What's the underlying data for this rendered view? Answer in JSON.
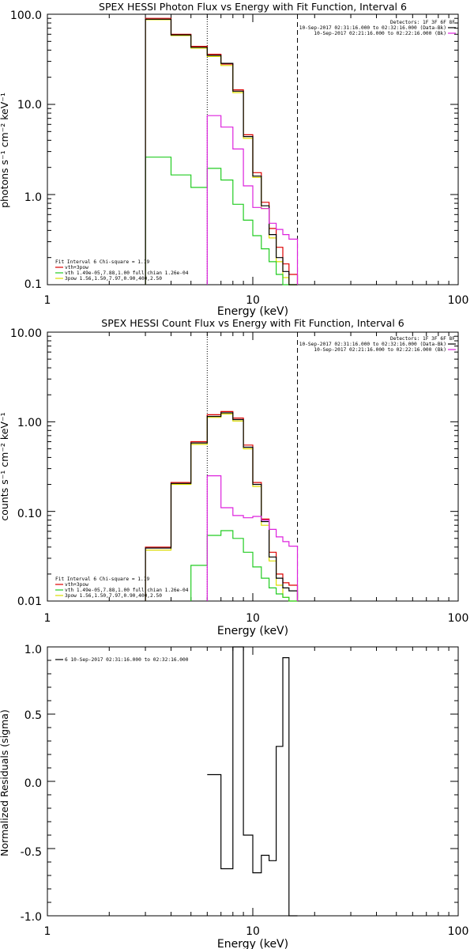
{
  "colors": {
    "total": "#000000",
    "vth_3pow": "#dd0000",
    "vth": "#22cc22",
    "3pow": "#dddd00",
    "bk": "#dd22dd"
  },
  "chart_data": [
    {
      "type": "line",
      "title": "SPEX HESSI Photon Flux vs Energy with Fit Function, Interval 6",
      "xlabel": "Energy (keV)",
      "ylabel": "photons s⁻¹ cm⁻² keV⁻¹",
      "xscale": "log",
      "yscale": "log",
      "xlim": [
        1,
        100
      ],
      "ylim": [
        0.1,
        100
      ],
      "xticks": [
        "1",
        "10",
        "100"
      ],
      "yticks": [
        "0.1",
        "1.0",
        "10.0",
        "100.0"
      ],
      "vlines": [
        {
          "x": 6.0,
          "style": "dotted"
        },
        {
          "x": 16.5,
          "style": "dashed"
        }
      ],
      "legend_top": [
        "Detectors: 1F 3F 6F 8F",
        "10-Sep-2017 02:31:16.000 to 02:32:16.000 (Data-Bk)",
        "10-Sep-2017 02:21:16.000 to 02:22:16.000 (Bk)"
      ],
      "legend_bottom": [
        "Fit Interval 6   Chi-square = 1.19",
        "vth+3pow",
        "vth 1.49e-05,7.88,1.00  full chian 1.26e-04",
        "3pow 1.56,1.50,7.97,0.90,400,2.50"
      ],
      "edges": [
        3,
        4,
        5,
        6,
        7,
        8,
        9,
        10,
        11,
        12,
        13,
        14,
        15,
        16.5
      ],
      "series": [
        {
          "name": "vth+3pow",
          "key": "vth_3pow",
          "values": [
            90,
            60,
            44,
            36,
            28,
            14.5,
            4.6,
            1.75,
            0.82,
            0.42,
            0.26,
            0.17,
            0.13
          ]
        },
        {
          "name": "3pow",
          "key": "3pow",
          "values": [
            87,
            58,
            42,
            34,
            27,
            13.5,
            4.2,
            1.55,
            0.7,
            0.33,
            0.18,
            0.12,
            0.085
          ]
        },
        {
          "name": "vth",
          "key": "vth",
          "values": [
            2.6,
            1.65,
            1.2,
            1.95,
            1.45,
            0.78,
            0.52,
            0.35,
            0.25,
            0.18,
            0.13,
            0.1,
            0.1
          ]
        },
        {
          "name": "total",
          "key": "total",
          "values": [
            88,
            59,
            43,
            35,
            28.5,
            14,
            4.4,
            1.6,
            0.75,
            0.36,
            0.2,
            0.14,
            0.1
          ]
        },
        {
          "name": "Bk",
          "key": "bk",
          "values": [
            null,
            null,
            null,
            7.5,
            5.6,
            3.2,
            1.25,
            0.72,
            0.7,
            0.48,
            0.41,
            0.36,
            0.32
          ]
        }
      ]
    },
    {
      "type": "line",
      "title": "SPEX HESSI Count Flux vs Energy with Fit Function, Interval 6",
      "xlabel": "Energy (keV)",
      "ylabel": "counts s⁻¹ cm⁻² keV⁻¹",
      "xscale": "log",
      "yscale": "log",
      "xlim": [
        1,
        100
      ],
      "ylim": [
        0.01,
        10
      ],
      "xticks": [
        "1",
        "10",
        "100"
      ],
      "yticks": [
        "0.01",
        "0.10",
        "1.00",
        "10.00"
      ],
      "vlines": [
        {
          "x": 6.0,
          "style": "dotted"
        },
        {
          "x": 16.5,
          "style": "dashed"
        }
      ],
      "legend_top": [
        "Detectors: 1F 3F 6F 8F",
        "10-Sep-2017 02:31:16.000 to 02:32:16.000 (Data-Bk)",
        "10-Sep-2017 02:21:16.000 to 02:22:16.000 (Bk)"
      ],
      "legend_bottom": [
        "Fit Interval 6   Chi-square = 1.19",
        "vth+3pow",
        "vth 1.49e-05,7.88,1.00  full chian 1.26e-04",
        "3pow 1.56,1.50,7.97,0.90,400,2.50"
      ],
      "edges": [
        3,
        4,
        5,
        6,
        7,
        8,
        9,
        10,
        11,
        12,
        13,
        14,
        15,
        16.5
      ],
      "series": [
        {
          "name": "vth+3pow",
          "key": "vth_3pow",
          "values": [
            0.04,
            0.21,
            0.6,
            1.2,
            1.3,
            1.1,
            0.55,
            0.21,
            0.082,
            0.035,
            0.02,
            0.016,
            0.015
          ]
        },
        {
          "name": "3pow",
          "key": "3pow",
          "values": [
            0.037,
            0.2,
            0.56,
            1.12,
            1.22,
            1.02,
            0.5,
            0.19,
            0.07,
            0.028,
            0.015,
            0.011,
            0.01
          ]
        },
        {
          "name": "vth",
          "key": "vth",
          "values": [
            null,
            null,
            0.025,
            0.054,
            0.061,
            0.05,
            0.035,
            0.024,
            0.018,
            0.014,
            0.012,
            0.011,
            0.01
          ]
        },
        {
          "name": "total",
          "key": "total",
          "values": [
            0.039,
            0.205,
            0.58,
            1.15,
            1.26,
            1.06,
            0.52,
            0.2,
            0.077,
            0.031,
            0.018,
            0.014,
            0.013
          ]
        },
        {
          "name": "Bk",
          "key": "bk",
          "values": [
            null,
            null,
            null,
            0.25,
            0.11,
            0.09,
            0.085,
            0.088,
            0.08,
            0.063,
            0.052,
            0.046,
            0.041
          ]
        }
      ]
    },
    {
      "type": "line",
      "title": "",
      "xlabel": "Energy (keV)",
      "ylabel": "Normalized Residuals (sigma)",
      "xscale": "log",
      "yscale": "linear",
      "xlim": [
        1,
        100
      ],
      "ylim": [
        -1.0,
        1.0
      ],
      "xticks": [
        "1",
        "10",
        "100"
      ],
      "yticks": [
        "-1.0",
        "-0.5",
        "0.0",
        "0.5",
        "1.0"
      ],
      "legend": [
        "6  10-Sep-2017 02:31:16.000 to 02:32:16.000"
      ],
      "edges": [
        6,
        7,
        8,
        9,
        10,
        11,
        12,
        13,
        14,
        15,
        16.5
      ],
      "series": [
        {
          "name": "6  10-Sep-2017 02:31:16.000 to 02:32:16.000",
          "key": "total",
          "values": [
            0.05,
            -0.65,
            1.0,
            -0.4,
            -0.68,
            -0.55,
            -0.59,
            0.26,
            0.92,
            -1.0
          ]
        }
      ]
    }
  ]
}
